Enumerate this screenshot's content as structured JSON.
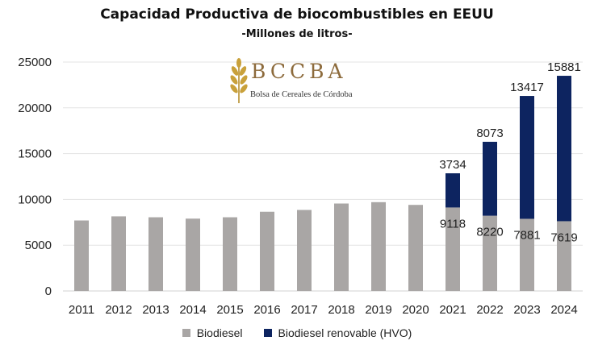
{
  "title": "Capacidad Productiva de biocombustibles en EEUU",
  "subtitle": "-Millones de litros-",
  "logo": {
    "text": "BCCBA",
    "subtitle": "Bolsa de Cereales de Córdoba",
    "icon": "wheat-icon",
    "color": "#8d6b3c"
  },
  "legend": [
    {
      "name": "Biodiesel",
      "color": "#a9a6a5"
    },
    {
      "name": "Biodiesel renovable (HVO)",
      "color": "#0d2460"
    }
  ],
  "chart_data": {
    "type": "bar",
    "stacked": true,
    "categories": [
      "2011",
      "2012",
      "2013",
      "2014",
      "2015",
      "2016",
      "2017",
      "2018",
      "2019",
      "2020",
      "2021",
      "2022",
      "2023",
      "2024"
    ],
    "series": [
      {
        "name": "Biodiesel",
        "color": "#a9a6a5",
        "values": [
          7700,
          8150,
          8050,
          7900,
          8050,
          8650,
          8850,
          9550,
          9700,
          9400,
          9118,
          8220,
          7881,
          7619
        ],
        "labels": [
          "",
          "",
          "",
          "",
          "",
          "",
          "",
          "",
          "",
          "",
          "9118",
          "8220",
          "7881",
          "7619"
        ]
      },
      {
        "name": "Biodiesel renovable (HVO)",
        "color": "#0d2460",
        "values": [
          0,
          0,
          0,
          0,
          0,
          0,
          0,
          0,
          0,
          0,
          3734,
          8073,
          13417,
          15881
        ],
        "labels": [
          "",
          "",
          "",
          "",
          "",
          "",
          "",
          "",
          "",
          "",
          "3734",
          "8073",
          "13417",
          "15881"
        ]
      }
    ],
    "yticks": [
      "0",
      "5000",
      "10000",
      "15000",
      "20000",
      "25000"
    ],
    "ylim": [
      0,
      25000
    ],
    "grid": true,
    "legend_position": "bottom"
  }
}
